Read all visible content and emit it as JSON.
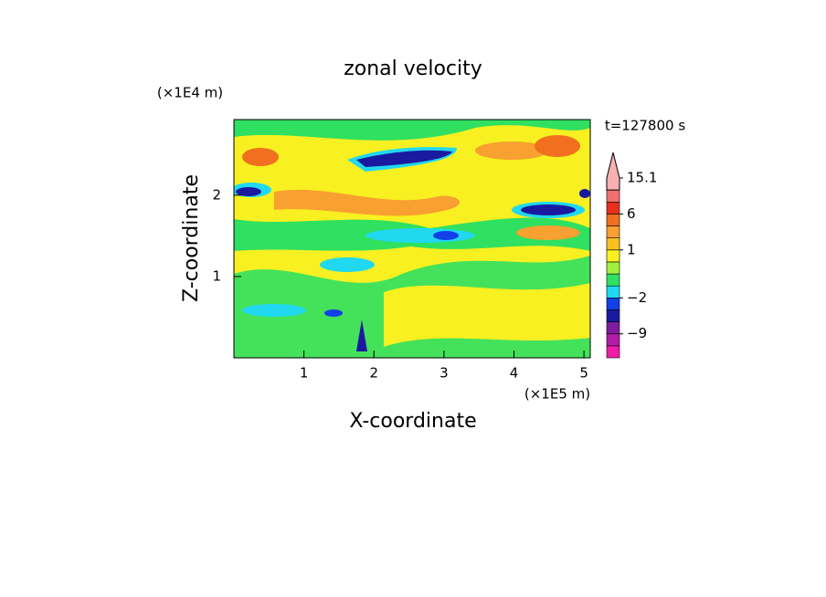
{
  "chart_data": {
    "type": "contour",
    "title": "zonal velocity",
    "time_label": "t=127800 s",
    "x_label": "X-coordinate",
    "y_label": "Z-coordinate",
    "x_unit": "(×1E5 m)",
    "y_unit": "(×1E4 m)",
    "xlim": [
      0,
      5.09
    ],
    "xticks": [
      1,
      2,
      3,
      4,
      5
    ],
    "ylim": [
      0,
      2.93
    ],
    "yticks": [
      1,
      2
    ],
    "colorbar": {
      "levels": [
        -18,
        -12,
        -9,
        -6,
        -4,
        -2,
        -1,
        0,
        0.5,
        1,
        2,
        4,
        6,
        9,
        12,
        15.1
      ],
      "colors": [
        "#ee1ca8",
        "#b21ca8",
        "#801c9e",
        "#1a1aa0",
        "#1240e8",
        "#20d8f0",
        "#30e060",
        "#a0f040",
        "#f8f020",
        "#f8c020",
        "#f8a030",
        "#f07020",
        "#e83020",
        "#f07070",
        "#f8b0b0"
      ],
      "ticks": [
        15.1,
        6,
        1,
        {
          "value": -2,
          "label": "−2"
        },
        {
          "value": -9,
          "label": "−9"
        }
      ]
    }
  }
}
